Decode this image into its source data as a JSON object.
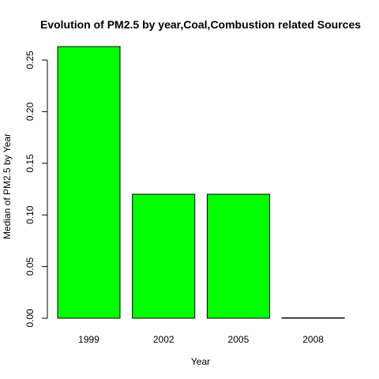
{
  "chart_data": {
    "type": "bar",
    "title": "Evolution of PM2.5 by year,Coal,Combustion related Sources",
    "xlabel": "Year",
    "ylabel": "Median of PM2.5 by Year",
    "categories": [
      "1999",
      "2002",
      "2005",
      "2008"
    ],
    "values": [
      0.263,
      0.12,
      0.12,
      0.0004
    ],
    "ylim": [
      0,
      0.263
    ],
    "yticks": [
      0.0,
      0.05,
      0.1,
      0.15,
      0.2,
      0.25
    ],
    "ytick_labels": [
      "0.00",
      "0.05",
      "0.10",
      "0.15",
      "0.20",
      "0.25"
    ],
    "bar_color": "#00ff00",
    "bar_border_color": "#000000",
    "grid": false,
    "legend": "none"
  }
}
